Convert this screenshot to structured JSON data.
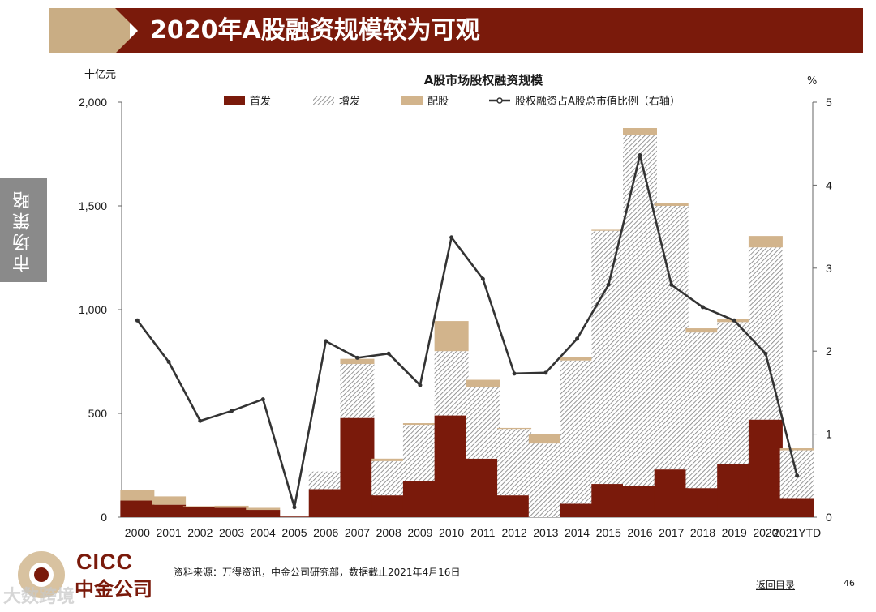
{
  "header": {
    "title": "2020年A股融资规模较为可观"
  },
  "side_tab": {
    "label": "市场策略"
  },
  "footer": {
    "logo_en": "CICC",
    "logo_cn": "中金公司",
    "watermark": "大数跨境",
    "source": "资料来源：万得资讯，中金公司研究部，数据截止2021年4月16日",
    "back_link": "返回目录",
    "page_number": "46"
  },
  "colors": {
    "banner": "#7a1a0b",
    "ipo": "#7a1a0b",
    "placement": "#8c8c8c",
    "rights": "#d2b48c",
    "line": "#333333"
  },
  "chart_data": {
    "type": "bar",
    "title": "A股市场股权融资规模",
    "left_unit": "十亿元",
    "right_unit": "%",
    "categories": [
      "2000",
      "2001",
      "2002",
      "2003",
      "2004",
      "2005",
      "2006",
      "2007",
      "2008",
      "2009",
      "2010",
      "2011",
      "2012",
      "2013",
      "2014",
      "2015",
      "2016",
      "2017",
      "2018",
      "2019",
      "2020",
      "2021YTD"
    ],
    "y_ticks": [
      "0",
      "500",
      "1,000",
      "1,500",
      "2,000"
    ],
    "y2_ticks": [
      "0",
      "1",
      "2",
      "3",
      "4",
      "5"
    ],
    "ylim": [
      0,
      2000
    ],
    "y2lim": [
      0,
      5
    ],
    "series": [
      {
        "name": "首发",
        "style": "solid",
        "values": [
          80,
          60,
          50,
          45,
          35,
          3,
          135,
          478,
          105,
          175,
          490,
          282,
          105,
          0,
          65,
          160,
          150,
          230,
          140,
          255,
          470,
          92
        ]
      },
      {
        "name": "增发",
        "style": "hatched",
        "values": [
          0,
          0,
          0,
          0,
          0,
          0,
          85,
          260,
          165,
          270,
          310,
          345,
          320,
          355,
          690,
          1220,
          1690,
          1270,
          750,
          685,
          830,
          230
        ]
      },
      {
        "name": "配股",
        "style": "solid",
        "values": [
          50,
          40,
          3,
          10,
          10,
          0,
          0,
          25,
          12,
          8,
          145,
          35,
          5,
          45,
          15,
          5,
          35,
          15,
          20,
          15,
          55,
          10
        ]
      },
      {
        "name": "股权融资占A股总市值比例（右轴）",
        "style": "line",
        "axis": "right",
        "values": [
          2.37,
          1.87,
          1.16,
          1.28,
          1.42,
          0.12,
          2.12,
          1.92,
          1.97,
          1.59,
          3.37,
          2.87,
          1.73,
          1.74,
          2.15,
          2.8,
          4.36,
          2.8,
          2.53,
          2.37,
          1.97,
          0.5
        ]
      }
    ]
  }
}
